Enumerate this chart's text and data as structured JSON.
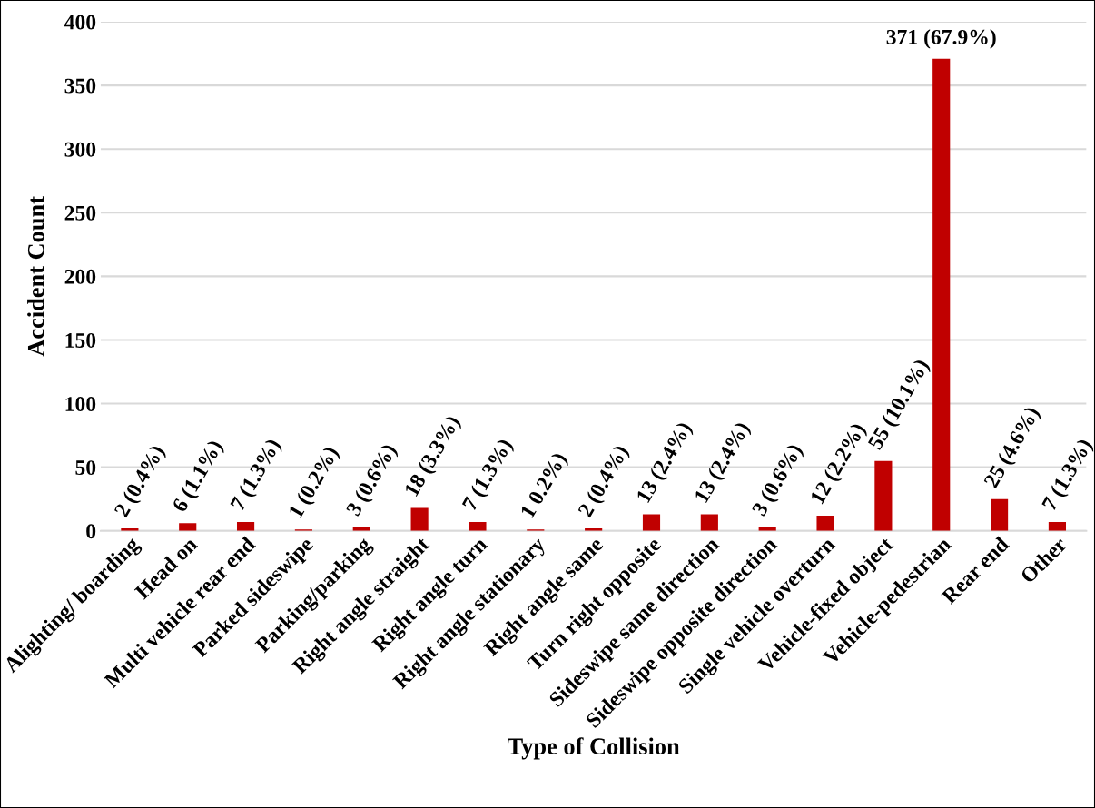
{
  "chart_data": {
    "type": "bar",
    "xlabel": "Type of Collision",
    "ylabel": "Accident Count",
    "categories": [
      "Alighting/ boarding",
      "Head on",
      "Multi vehicle rear end",
      "Parked sideswipe",
      "Parking/parking",
      "Right angle straight",
      "Right angle turn",
      "Right angle stationary",
      "Right angle same",
      "Turn right opposite",
      "Sideswipe same direction",
      "Sideswipe opposite direction",
      "Single vehicle overturn",
      "Vehicle-fixed object",
      "Vehicle-pedestrian",
      "Rear end",
      "Other"
    ],
    "values": [
      2,
      6,
      7,
      1,
      3,
      18,
      7,
      1,
      2,
      13,
      13,
      3,
      12,
      55,
      371,
      25,
      7
    ],
    "value_labels": [
      "2 (0.4%)",
      "6 (1.1%)",
      "7 (1.3%)",
      "1 (0.2%)",
      "3 (0.6%)",
      "18 (3.3%)",
      "7 (1.3%)",
      "1 0.2%)",
      "2 (0.4%)",
      "13 (2.4%)",
      "13 (2.4%)",
      "3 (0.6%)",
      "12 (2.2%)",
      "55 (10.1%)",
      "371 (67.9%)",
      "25 (4.6%)",
      "7 (1.3%)"
    ],
    "color": "#c00000",
    "ylim": [
      0,
      400
    ],
    "yticks": [
      0,
      50,
      100,
      150,
      200,
      250,
      300,
      350,
      400
    ],
    "grid": "y"
  }
}
